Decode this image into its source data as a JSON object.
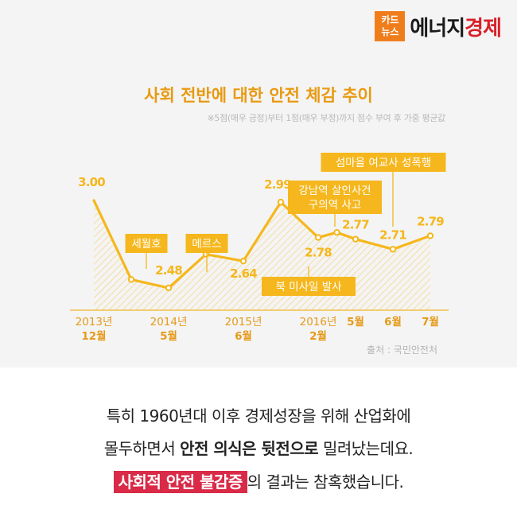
{
  "logo": {
    "box_line1": "카드",
    "box_line2": "뉴스",
    "text_black": "에너지",
    "text_red": "경제"
  },
  "title": "사회 전반에 대한 안전 체감 추이",
  "subtitle": "※5점(매우 긍정)부터 1점(매우 부정)까지 점수 부여 후 가중 평균값",
  "source": "출처 : 국민안전처",
  "colors": {
    "accent": "#f5b71d",
    "title": "#e89a12",
    "axis_label": "#e59a1a",
    "highlight_bg": "#d92a47",
    "brand_red": "#d9202a",
    "brand_orange": "#f07d1c"
  },
  "chart_data": {
    "type": "line",
    "title": "사회 전반에 대한 안전 체감 추이",
    "note": "※5점(매우 긍정)부터 1점(매우 부정)까지 점수 부여 후 가중 평균값",
    "x_axis_labels": [
      {
        "line1": "2013년",
        "line2": "12월",
        "index": 0
      },
      {
        "line1": "2014년",
        "line2": "5월",
        "index": 2
      },
      {
        "line1": "2015년",
        "line2": "6월",
        "index": 4
      },
      {
        "line1": "2016년",
        "line2": "2월",
        "index": 6
      },
      {
        "line1": "5월",
        "line2": "",
        "index": 7
      },
      {
        "line1": "6월",
        "line2": "",
        "index": 8
      },
      {
        "line1": "7월",
        "line2": "",
        "index": 9
      }
    ],
    "values": [
      3.0,
      2.53,
      2.48,
      2.68,
      2.64,
      2.99,
      2.78,
      2.81,
      2.77,
      2.71,
      2.79
    ],
    "x_positions": [
      0,
      1,
      2,
      3,
      4,
      5,
      6,
      6.5,
      7,
      8,
      9
    ],
    "x_range": [
      0,
      9
    ],
    "data_labels": [
      {
        "text": "3.00",
        "i": 0
      },
      {
        "text": "2.48",
        "i": 2
      },
      {
        "text": "2.64",
        "i": 4
      },
      {
        "text": "2.99",
        "i": 5
      },
      {
        "text": "2.78",
        "i": 6
      },
      {
        "text": "2.77",
        "i": 8
      },
      {
        "text": "2.71",
        "i": 9
      },
      {
        "text": "2.79",
        "i": 10
      }
    ],
    "annotations": [
      {
        "text": "세월호",
        "x": 1.5
      },
      {
        "text": "메르스",
        "x": 3.5
      },
      {
        "text": "북 미사일 발사",
        "x": 6.5
      },
      {
        "text": "강남역 살인사건\n구의역 사고",
        "x": 7.5
      },
      {
        "text": "섬마을 여교사 성폭행",
        "x": 8.5
      }
    ],
    "grid": false,
    "legend": "none"
  },
  "para": {
    "p1": "특히 1960년대 이후 경제성장을 위해 산업화에",
    "p2_a": "몰두하면서 ",
    "p2_bold": "안전 의식은 뒷전으로",
    "p2_b": " 밀려났는데요.",
    "p3_highlight": "사회적 안전 불감증",
    "p3_rest": "의 결과는 참혹했습니다."
  }
}
